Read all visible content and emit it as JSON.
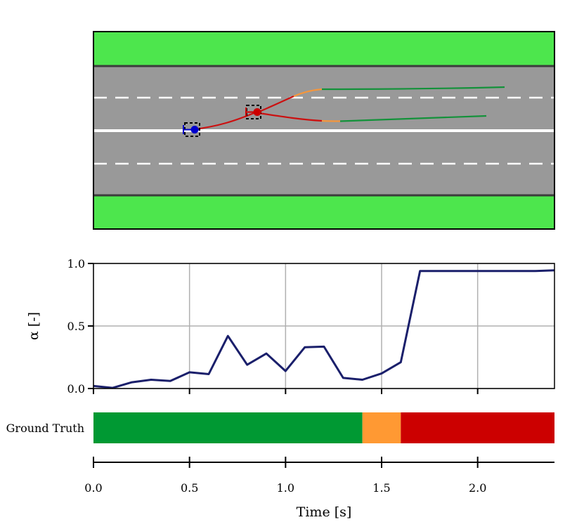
{
  "scene": {
    "grass_color": "#4de64d",
    "road_color": "#999999",
    "lane_marking_color": "#ffffff",
    "ego_vehicle_color": "#0000cc",
    "other_vehicle_color": "#cc0000",
    "trajectory_colors": {
      "safe": "#13923a",
      "warning": "#f5963c",
      "critical": "#cc1010"
    }
  },
  "chart_data": {
    "type": "line",
    "xlabel": "Time [s]",
    "ylabel": "α [-]",
    "xlim": [
      0.0,
      2.4
    ],
    "ylim": [
      0.0,
      1.0
    ],
    "xticks": [
      "0.0",
      "0.5",
      "1.0",
      "1.5",
      "2.0"
    ],
    "yticks": [
      "0.0",
      "0.5",
      "1.0"
    ],
    "grid": true,
    "line_color": "#1a1f6b",
    "series": [
      {
        "x": [
          0.0,
          0.1,
          0.2,
          0.3,
          0.4,
          0.5,
          0.6,
          0.7,
          0.8,
          0.9,
          1.0,
          1.1,
          1.2,
          1.3,
          1.4,
          1.5,
          1.6,
          1.7,
          1.8,
          1.9,
          2.0,
          2.1,
          2.2,
          2.3,
          2.4
        ],
        "values": [
          0.02,
          0.005,
          0.05,
          0.07,
          0.06,
          0.13,
          0.115,
          0.42,
          0.19,
          0.28,
          0.14,
          0.33,
          0.335,
          0.085,
          0.07,
          0.12,
          0.21,
          0.94,
          0.94,
          0.94,
          0.94,
          0.94,
          0.94,
          0.94,
          0.945
        ]
      }
    ],
    "ground_truth": {
      "label": "Ground Truth",
      "segments": [
        {
          "start": 0.0,
          "end": 1.4,
          "color": "#009933"
        },
        {
          "start": 1.4,
          "end": 1.6,
          "color": "#ff9933"
        },
        {
          "start": 1.6,
          "end": 2.4,
          "color": "#cc0000"
        }
      ]
    }
  }
}
